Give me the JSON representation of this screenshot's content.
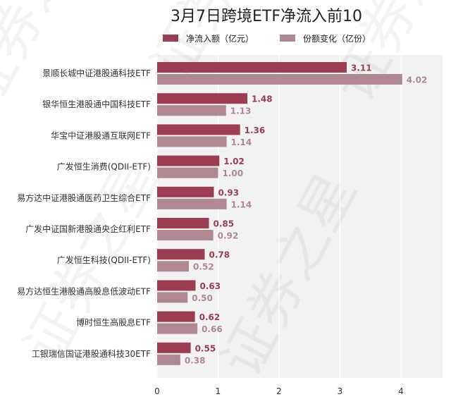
{
  "chart_data": {
    "type": "bar",
    "orientation": "horizontal",
    "title": "3月7日跨境ETF净流入前10",
    "categories": [
      "景顺长城中证港股通科技ETF",
      "银华恒生港股通中国科技ETF",
      "华宝中证港股通互联网ETF",
      "广发恒生消费(QDII-ETF)",
      "易方达中证港股通医药卫生综合ETF",
      "广发中证国新港股通央企红利ETF",
      "广发恒生科技(QDII-ETF)",
      "易方达恒生港股通高股息低波动ETF",
      "博时恒生高股息ETF",
      "工银瑞信国证港股通科技30ETF"
    ],
    "series": [
      {
        "name": "净流入额（亿元）",
        "color": "#9c3d54",
        "values": [
          3.11,
          1.48,
          1.36,
          1.02,
          0.93,
          0.85,
          0.78,
          0.63,
          0.62,
          0.55
        ],
        "labels": [
          "3.11",
          "1.48",
          "1.36",
          "1.02",
          "0.93",
          "0.85",
          "0.78",
          "0.63",
          "0.62",
          "0.55"
        ]
      },
      {
        "name": "份额变化（亿份）",
        "color": "#b08891",
        "values": [
          4.02,
          1.13,
          1.14,
          1.0,
          1.14,
          0.92,
          0.52,
          0.5,
          0.66,
          0.38
        ],
        "labels": [
          "4.02",
          "1.13",
          "1.14",
          "1.00",
          "1.14",
          "0.92",
          "0.52",
          "0.50",
          "0.66",
          "0.38"
        ]
      }
    ],
    "xticks": [
      "0",
      "1",
      "2",
      "3",
      "4"
    ],
    "xlim": [
      0,
      4.8
    ],
    "grid": true,
    "legend_position": "top",
    "background": "#f2f2f2"
  }
}
